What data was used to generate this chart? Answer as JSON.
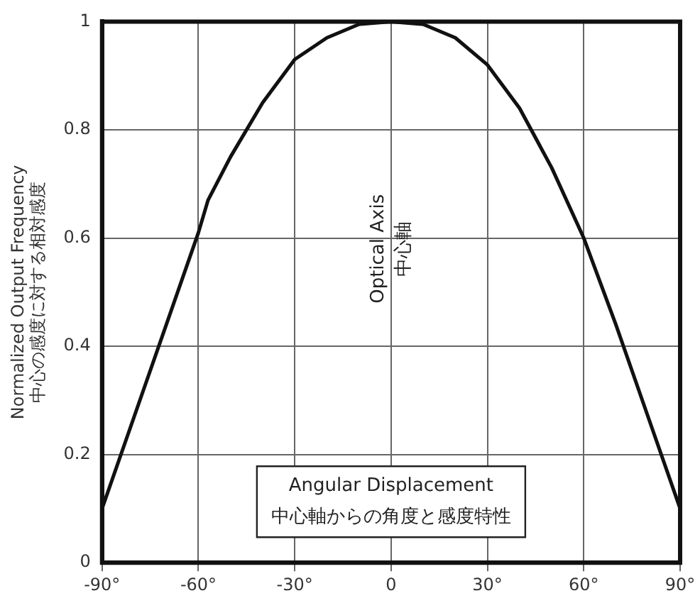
{
  "chart_data": {
    "type": "line",
    "xlabel": "Angular Displacement\n中心軸からの角度と感度特性",
    "ylabel": "Normalized Output Frequency\n中心の感度に対する相対感度",
    "x": [
      -90,
      -80,
      -70,
      -60,
      -57,
      -50,
      -40,
      -30,
      -20,
      -10,
      0,
      10,
      20,
      30,
      40,
      50,
      60,
      70,
      80,
      90
    ],
    "series": [
      {
        "color": "#111111",
        "values": [
          0.1,
          0.27,
          0.44,
          0.61,
          0.67,
          0.75,
          0.85,
          0.93,
          0.97,
          0.995,
          1,
          0.995,
          0.97,
          0.92,
          0.84,
          0.73,
          0.6,
          0.44,
          0.27,
          0.1
        ]
      }
    ],
    "xlim": [
      -90,
      90
    ],
    "xticks": [
      {
        "value": -90,
        "label": "-90°"
      },
      {
        "value": -60,
        "label": "-60°"
      },
      {
        "value": -30,
        "label": "-30°"
      },
      0,
      {
        "value": 30,
        "label": "30°"
      },
      {
        "value": 60,
        "label": "60°"
      },
      {
        "value": 90,
        "label": "90°"
      }
    ],
    "ylim": [
      0,
      1
    ],
    "yticks": [
      0,
      0.2,
      0.4,
      0.6,
      0.8,
      1
    ],
    "annotations": [
      "Optical Axis",
      "中心軸"
    ],
    "grid": true,
    "legend": false,
    "marker": "none",
    "line_style": "solid"
  }
}
